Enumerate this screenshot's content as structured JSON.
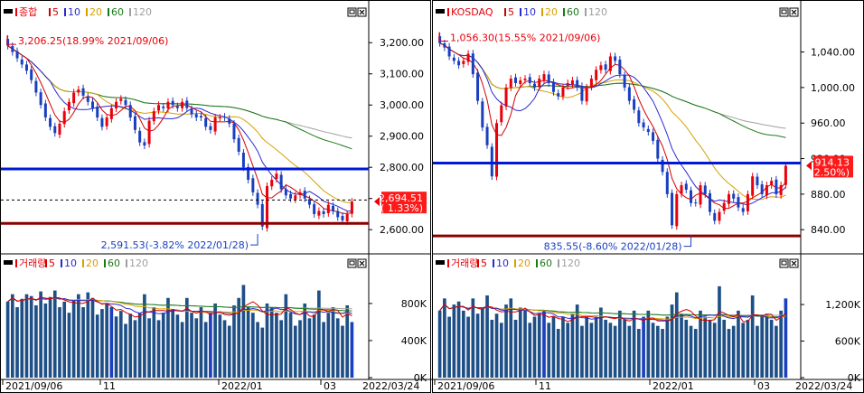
{
  "panels": [
    {
      "id": "kospi",
      "price": {
        "title": "종합",
        "ma_labels": [
          "5",
          "10",
          "20",
          "60",
          "120"
        ],
        "high_note": "3,206.25(18.99% 2021/09/06)",
        "low_note": "2,591.53(-3.82% 2022/01/28)",
        "current_value": "2,694.51",
        "current_change": "( 1.33%)"
      },
      "volume": {
        "title": "거래량",
        "ma_labels": [
          "5",
          "10",
          "20",
          "60",
          "120"
        ]
      }
    },
    {
      "id": "kosdaq",
      "price": {
        "title": "KOSDAQ",
        "ma_labels": [
          "5",
          "10",
          "20",
          "60",
          "120"
        ],
        "high_note": "1,056.30(15.55% 2021/09/06)",
        "low_note": "835.55(-8.60% 2022/01/28)",
        "current_value": "914.13",
        "current_change": "( 2.50%)"
      },
      "volume": {
        "title": "거래량",
        "ma_labels": [
          "5",
          "10",
          "20",
          "60",
          "120"
        ]
      }
    }
  ],
  "colors": {
    "up": "#e8000b",
    "down": "#1a3fbf",
    "ma5": "#d40000",
    "ma10": "#2a2ad0",
    "ma20": "#d7a000",
    "ma60": "#1a7a1a",
    "ma120": "#a0a0a0",
    "hline_blue": "#0018d8",
    "hline_red": "#8b0000",
    "volume_bar": "#1e4f86"
  },
  "chart_data": [
    {
      "type": "candlestick",
      "title": "종합",
      "ylim": [
        2560,
        3250
      ],
      "y_ticks": [
        "3,200.00",
        "3,100.00",
        "3,000.00",
        "2,900.00",
        "2,800.00",
        "2,700.00",
        "2,600.00"
      ],
      "x_labels": [
        "2021/09/06",
        "11",
        "2022/01",
        "03",
        "2022/03/24"
      ],
      "close_series": [
        3190,
        3170,
        3150,
        3130,
        3110,
        3080,
        3040,
        3000,
        2960,
        2930,
        2910,
        2940,
        2980,
        3010,
        3040,
        3050,
        3030,
        3010,
        2990,
        2960,
        2930,
        2960,
        2990,
        3010,
        3020,
        3000,
        2960,
        2920,
        2880,
        2870,
        2950,
        2980,
        3000,
        2990,
        3010,
        3000,
        2990,
        3010,
        2990,
        2970,
        2960,
        2960,
        2930,
        2920,
        2960,
        2960,
        2960,
        2940,
        2890,
        2850,
        2800,
        2760,
        2720,
        2680,
        2610,
        2740,
        2760,
        2780,
        2730,
        2710,
        2700,
        2710,
        2720,
        2700,
        2680,
        2650,
        2660,
        2650,
        2680,
        2660,
        2640,
        2630,
        2650,
        2690
      ],
      "hlines": [
        2795,
        2620
      ],
      "dashed_line": 2695,
      "high": {
        "value": 3206.25,
        "date": "2021/09/06"
      },
      "low": {
        "value": 2591.53,
        "date": "2022/01/28"
      }
    },
    {
      "type": "bar",
      "title": "거래량",
      "ylim": [
        0,
        1150
      ],
      "y_ticks": [
        "800K",
        "400K",
        "0K"
      ],
      "values": [
        820,
        900,
        760,
        850,
        900,
        880,
        780,
        930,
        800,
        870,
        940,
        760,
        820,
        700,
        830,
        900,
        760,
        920,
        860,
        680,
        740,
        800,
        760,
        660,
        720,
        580,
        690,
        620,
        700,
        900,
        640,
        760,
        620,
        700,
        860,
        740,
        680,
        600,
        860,
        700,
        640,
        760,
        600,
        700,
        800,
        680,
        620,
        560,
        780,
        860,
        1000,
        760,
        700,
        600,
        540,
        800,
        760,
        700,
        620,
        900,
        700,
        560,
        620,
        800,
        640,
        680,
        940,
        600,
        700,
        760,
        640,
        560,
        780,
        600
      ]
    },
    {
      "type": "candlestick",
      "title": "KOSDAQ",
      "ylim": [
        826,
        1068
      ],
      "y_ticks": [
        "1,040.00",
        "1,000.00",
        "960.00",
        "920.00",
        "880.00",
        "840.00"
      ],
      "x_labels": [
        "2021/09/06",
        "11",
        "2022/01",
        "03",
        "2022/03/24"
      ],
      "close_series": [
        1050,
        1045,
        1035,
        1030,
        1025,
        1030,
        1038,
        1015,
        985,
        955,
        935,
        900,
        960,
        980,
        1000,
        1010,
        1005,
        1008,
        1010,
        1005,
        1000,
        1010,
        1015,
        1005,
        995,
        990,
        1000,
        1005,
        1008,
        1000,
        985,
        1000,
        1010,
        1020,
        1025,
        1020,
        1035,
        1030,
        1015,
        1000,
        985,
        975,
        960,
        955,
        950,
        940,
        920,
        905,
        880,
        845,
        880,
        890,
        885,
        870,
        870,
        890,
        880,
        860,
        850,
        860,
        870,
        880,
        875,
        865,
        860,
        880,
        900,
        890,
        880,
        890,
        895,
        880,
        890,
        912
      ],
      "hlines": [
        915,
        833
      ],
      "high": {
        "value": 1056.3,
        "date": "2021/09/06"
      },
      "low": {
        "value": 835.55,
        "date": "2022/01/28"
      }
    },
    {
      "type": "bar",
      "title": "거래량",
      "ylim": [
        0,
        1750
      ],
      "y_ticks": [
        "1,200K",
        "600K",
        "0K"
      ],
      "values": [
        1100,
        1300,
        1000,
        1200,
        1250,
        1100,
        1000,
        1300,
        1050,
        1150,
        1350,
        950,
        1050,
        900,
        1200,
        1300,
        950,
        1150,
        1100,
        900,
        1000,
        1050,
        1100,
        900,
        1000,
        800,
        1000,
        900,
        1050,
        1200,
        850,
        1000,
        900,
        1000,
        1150,
        950,
        900,
        850,
        1100,
        950,
        850,
        1100,
        800,
        1000,
        1100,
        900,
        850,
        800,
        1000,
        1200,
        1400,
        1050,
        950,
        850,
        800,
        1100,
        1000,
        950,
        900,
        1500,
        950,
        800,
        850,
        1100,
        900,
        950,
        1350,
        850,
        1000,
        1050,
        950,
        850,
        1100,
        1300
      ]
    }
  ]
}
